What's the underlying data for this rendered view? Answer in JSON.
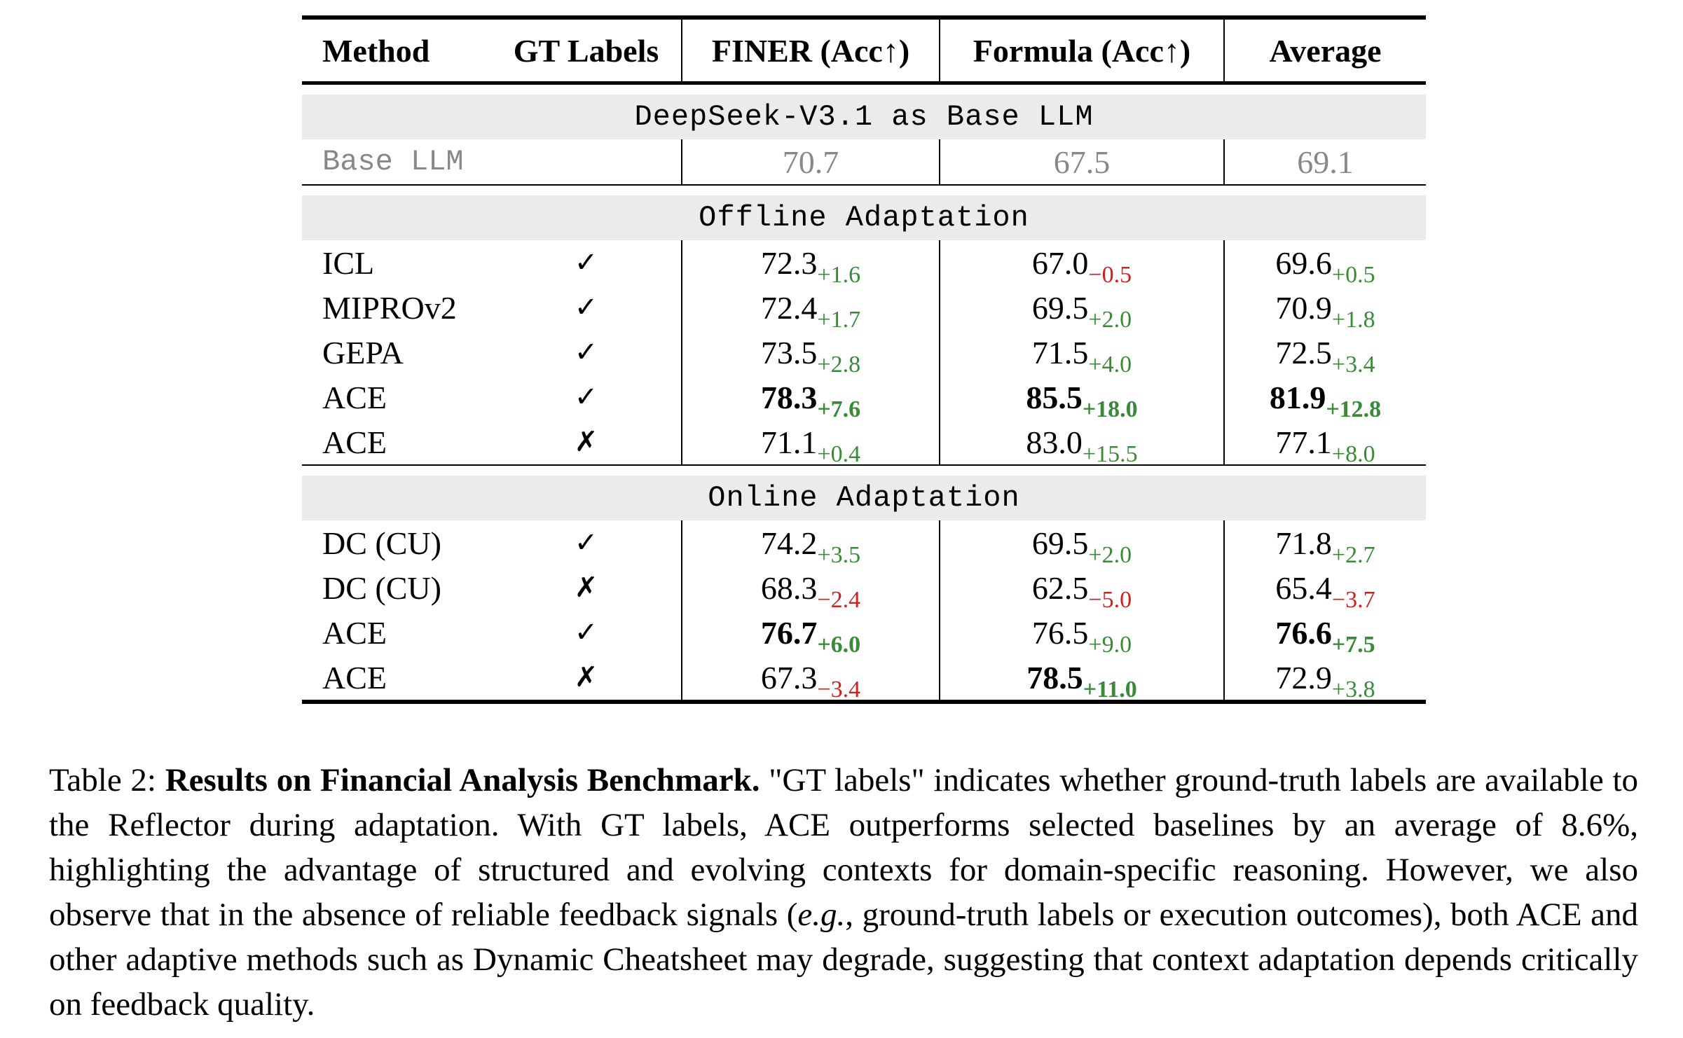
{
  "table": {
    "headers": {
      "method": "Method",
      "gt": "GT Labels",
      "finer": "FINER (Acc↑)",
      "formula": "Formula (Acc↑)",
      "average": "Average"
    },
    "sections": {
      "base_title": "DeepSeek-V3.1 as Base LLM",
      "offline_title": "Offline Adaptation",
      "online_title": "Online Adaptation"
    },
    "base_row": {
      "method": "Base LLM",
      "finer": "70.7",
      "formula": "67.5",
      "average": "69.1"
    },
    "offline_rows": [
      {
        "method": "ICL",
        "gt": "✓",
        "finer": "72.3",
        "finer_delta": "+1.6",
        "formula": "67.0",
        "formula_delta": "−0.5",
        "average": "69.6",
        "average_delta": "+0.5"
      },
      {
        "method": "MIPROv2",
        "gt": "✓",
        "finer": "72.4",
        "finer_delta": "+1.7",
        "formula": "69.5",
        "formula_delta": "+2.0",
        "average": "70.9",
        "average_delta": "+1.8"
      },
      {
        "method": "GEPA",
        "gt": "✓",
        "finer": "73.5",
        "finer_delta": "+2.8",
        "formula": "71.5",
        "formula_delta": "+4.0",
        "average": "72.5",
        "average_delta": "+3.4"
      },
      {
        "method": "ACE",
        "gt": "✓",
        "finer": "78.3",
        "finer_delta": "+7.6",
        "formula": "85.5",
        "formula_delta": "+18.0",
        "average": "81.9",
        "average_delta": "+12.8"
      },
      {
        "method": "ACE",
        "gt": "✗",
        "finer": "71.1",
        "finer_delta": "+0.4",
        "formula": "83.0",
        "formula_delta": "+15.5",
        "average": "77.1",
        "average_delta": "+8.0"
      }
    ],
    "online_rows": [
      {
        "method": "DC (CU)",
        "gt": "✓",
        "finer": "74.2",
        "finer_delta": "+3.5",
        "formula": "69.5",
        "formula_delta": "+2.0",
        "average": "71.8",
        "average_delta": "+2.7"
      },
      {
        "method": "DC (CU)",
        "gt": "✗",
        "finer": "68.3",
        "finer_delta": "−2.4",
        "formula": "62.5",
        "formula_delta": "−5.0",
        "average": "65.4",
        "average_delta": "−3.7"
      },
      {
        "method": "ACE",
        "gt": "✓",
        "finer": "76.7",
        "finer_delta": "+6.0",
        "formula": "76.5",
        "formula_delta": "+9.0",
        "average": "76.6",
        "average_delta": "+7.5"
      },
      {
        "method": "ACE",
        "gt": "✗",
        "finer": "67.3",
        "finer_delta": "−3.4",
        "formula": "78.5",
        "formula_delta": "+11.0",
        "average": "72.9",
        "average_delta": "+3.8"
      }
    ]
  },
  "caption": {
    "label": "Table 2:",
    "title": "Results on Financial Analysis Benchmark.",
    "text_1": "\"GT labels\" indicates whether ground-truth labels are available to the Reflector during adaptation. With GT labels, ACE outperforms selected baselines by an average of 8.6%, highlighting the advantage of structured and evolving contexts for domain-specific reasoning. However, we also observe that in the absence of reliable feedback signals (",
    "eg": "e.g.",
    "text_2": ", ground-truth labels or execution outcomes), both ACE and other adaptive methods such as Dynamic Cheatsheet may degrade, suggesting that context adaptation depends critically on feedback quality."
  },
  "colors": {
    "positive": "#3a8a3a",
    "negative": "#d02020",
    "section_bg": "#ebebeb",
    "base_text": "#888888"
  }
}
